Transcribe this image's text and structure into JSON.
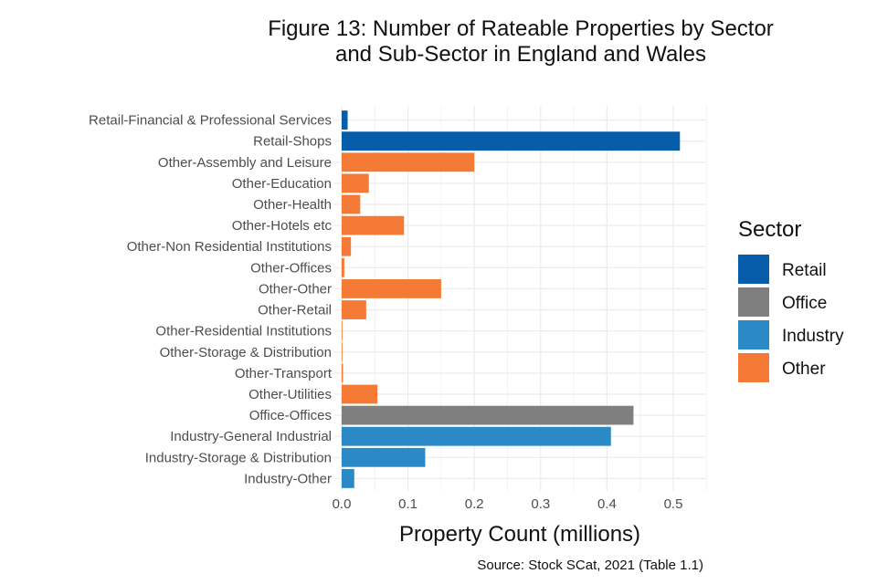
{
  "chart_data": {
    "type": "bar",
    "orientation": "horizontal",
    "title_lines": [
      "Figure 13: Number of Rateable Properties by Sector",
      "and Sub-Sector in England and Wales"
    ],
    "xlabel": "Property Count (millions)",
    "ylabel": "",
    "xlim": [
      0,
      0.55
    ],
    "xticks": [
      "0.0",
      "0.1",
      "0.2",
      "0.3",
      "0.4",
      "0.5"
    ],
    "grid": true,
    "legend_title": "Sector",
    "legend_position": "right",
    "source": "Source: Stock SCat, 2021 (Table 1.1)",
    "sectors": [
      {
        "name": "Retail",
        "color": "#075DAA"
      },
      {
        "name": "Office",
        "color": "#7F7F7F"
      },
      {
        "name": "Industry",
        "color": "#2B8AC6"
      },
      {
        "name": "Other",
        "color": "#F47A36"
      }
    ],
    "bars": [
      {
        "label": "Retail-Financial & Professional Services",
        "sector": "Retail",
        "value": 0.009
      },
      {
        "label": "Retail-Shops",
        "sector": "Retail",
        "value": 0.51
      },
      {
        "label": "Other-Assembly and Leisure",
        "sector": "Other",
        "value": 0.2
      },
      {
        "label": "Other-Education",
        "sector": "Other",
        "value": 0.041
      },
      {
        "label": "Other-Health",
        "sector": "Other",
        "value": 0.028
      },
      {
        "label": "Other-Hotels etc",
        "sector": "Other",
        "value": 0.094
      },
      {
        "label": "Other-Non Residential Institutions",
        "sector": "Other",
        "value": 0.014
      },
      {
        "label": "Other-Offices",
        "sector": "Other",
        "value": 0.004
      },
      {
        "label": "Other-Other",
        "sector": "Other",
        "value": 0.15
      },
      {
        "label": "Other-Retail",
        "sector": "Other",
        "value": 0.037
      },
      {
        "label": "Other-Residential Institutions",
        "sector": "Other",
        "value": 0.001
      },
      {
        "label": "Other-Storage & Distribution",
        "sector": "Other",
        "value": 0.001
      },
      {
        "label": "Other-Transport",
        "sector": "Other",
        "value": 0.002
      },
      {
        "label": "Other-Utilities",
        "sector": "Other",
        "value": 0.054
      },
      {
        "label": "Office-Offices",
        "sector": "Office",
        "value": 0.44
      },
      {
        "label": "Industry-General Industrial",
        "sector": "Industry",
        "value": 0.406
      },
      {
        "label": "Industry-Storage & Distribution",
        "sector": "Industry",
        "value": 0.126
      },
      {
        "label": "Industry-Other",
        "sector": "Industry",
        "value": 0.019
      }
    ]
  }
}
